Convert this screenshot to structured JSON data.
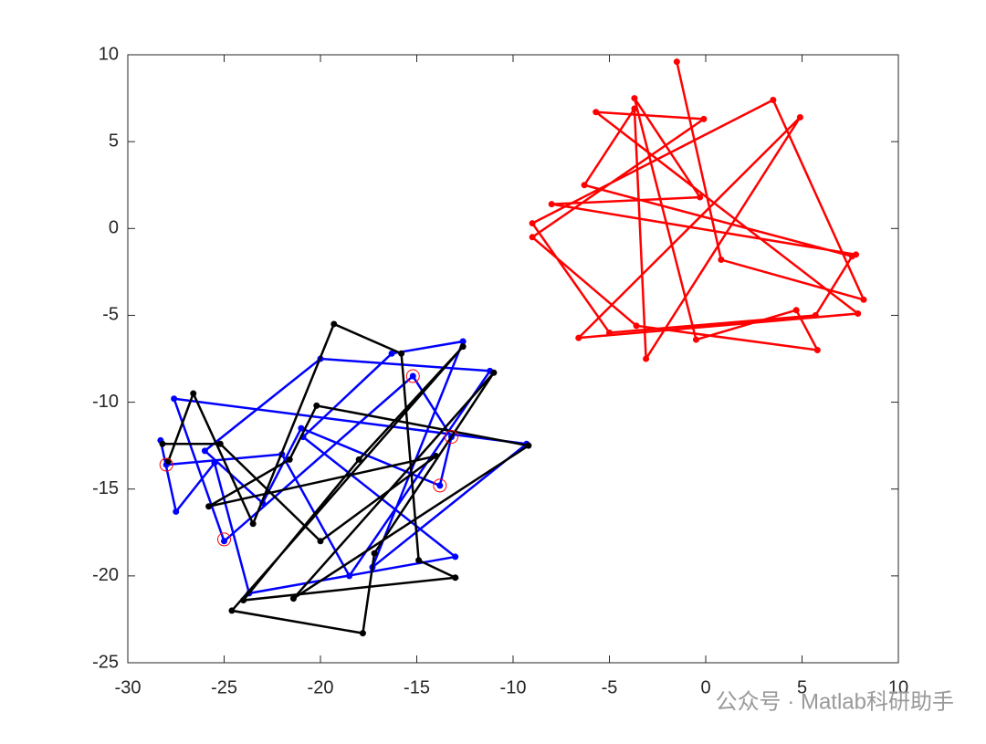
{
  "chart_data": {
    "type": "line",
    "xlim": [
      -30,
      10
    ],
    "ylim": [
      -25,
      10
    ],
    "xticks": [
      -30,
      -25,
      -20,
      -15,
      -10,
      -5,
      0,
      5,
      10
    ],
    "yticks": [
      -25,
      -20,
      -15,
      -10,
      -5,
      0,
      5,
      10
    ],
    "box": true,
    "grid": false,
    "series": [
      {
        "color": "#ff0000",
        "marker": "dot",
        "x": [
          -1.5,
          0.8,
          8.2,
          3.5,
          -9,
          -5,
          5.7,
          7.6,
          -6.3,
          -3.7,
          -3.1,
          4.9,
          -6.6,
          7.9,
          -5.7,
          -0.1,
          -9,
          -3.6,
          5.8,
          4.7,
          -0.5,
          -3.7,
          -0.3,
          -8,
          7.8
        ],
        "y": [
          9.6,
          -1.8,
          -4.1,
          7.4,
          0.3,
          -6,
          -5,
          -1.6,
          2.5,
          6.9,
          -7.5,
          6.4,
          -6.3,
          -4.9,
          6.7,
          6.3,
          -0.5,
          -5.6,
          -7,
          -4.7,
          -6.4,
          7.5,
          1.8,
          1.4,
          -1.5
        ]
      },
      {
        "color": "#0000ff",
        "marker": "dot",
        "x": [
          -28.3,
          -27.5,
          -25.5,
          -23.7,
          -13,
          -20.9,
          -16.3,
          -12.6,
          -17.3,
          -9.3,
          -27.6,
          -25,
          -15.2,
          -13.2,
          -13.8,
          -21,
          -23,
          -26,
          -20,
          -11.2,
          -18.5,
          -22,
          -28
        ],
        "y": [
          -12.2,
          -16.3,
          -13.5,
          -21,
          -18.9,
          -12,
          -7.2,
          -6.5,
          -19.5,
          -12.4,
          -9.8,
          -18,
          -8.5,
          -12,
          -14.8,
          -11.5,
          -15.8,
          -12.8,
          -7.5,
          -8.2,
          -20,
          -13,
          -13.6
        ]
      },
      {
        "color": "#000000",
        "marker": "dot",
        "x": [
          -27.9,
          -26.6,
          -23.5,
          -19.3,
          -15.8,
          -14.9,
          -13,
          -24,
          -18,
          -12.6,
          -24.6,
          -17.8,
          -17.2,
          -11,
          -21.4,
          -9.2,
          -20.2,
          -21.6,
          -25.8,
          -14,
          -20,
          -25.2,
          -28.2
        ],
        "y": [
          -13.4,
          -9.5,
          -17,
          -5.5,
          -7.2,
          -19.1,
          -20.1,
          -21.4,
          -13.3,
          -6.8,
          -22,
          -23.3,
          -18.7,
          -8.3,
          -21.3,
          -12.5,
          -10.2,
          -13.3,
          -16,
          -13.1,
          -18,
          -12.4,
          -12.4
        ]
      },
      {
        "color": "#ff0000",
        "marker": "circle-open",
        "line": false,
        "x": [
          -28,
          -25,
          -15.2,
          -13.2,
          -13.8
        ],
        "y": [
          -13.6,
          -17.9,
          -8.5,
          -12,
          -14.8
        ]
      }
    ]
  },
  "watermark": "公众号 · Matlab科研助手"
}
